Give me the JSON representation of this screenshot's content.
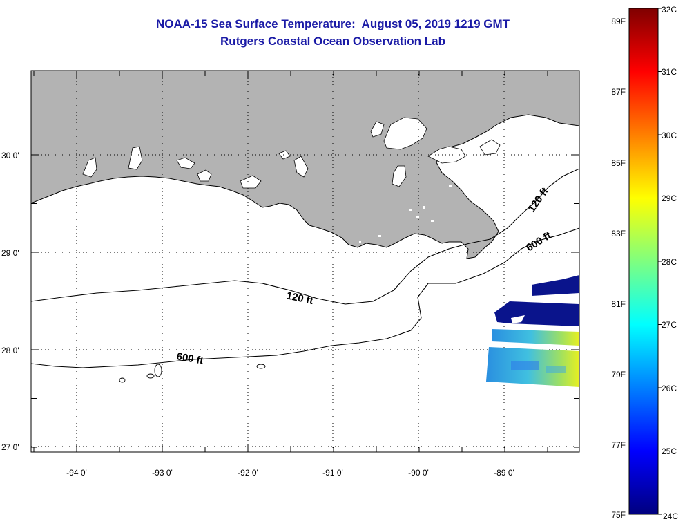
{
  "titles": {
    "line1": "NOAA-15 Sea Surface Temperature:  August 05, 2019 1219 GMT",
    "line2": "Rutgers Coastal Ocean Observation Lab"
  },
  "map": {
    "lon_labels": [
      "-94 0'",
      "-93 0'",
      "-92 0'",
      "-91 0'",
      "-90 0'",
      "-89 0'"
    ],
    "lat_labels": [
      "30 0'",
      "29 0'",
      "28 0'",
      "27 0'"
    ],
    "isobath_labels": [
      {
        "text": "120 ft",
        "which": "inner-west"
      },
      {
        "text": "120 ft",
        "which": "inner-east"
      },
      {
        "text": "600 ft",
        "which": "outer-west"
      },
      {
        "text": "600 ft",
        "which": "outer-east"
      }
    ],
    "grid": "dotted",
    "colors": {
      "land": "#b3b3b3",
      "water": "#ffffff",
      "isobath": "#000000"
    }
  },
  "colorbar": {
    "celsius_labels": [
      "32C",
      "31C",
      "30C",
      "29C",
      "28C",
      "27C",
      "26C",
      "25C",
      "24C"
    ],
    "fahrenheit_labels": [
      "89F",
      "87F",
      "85F",
      "83F",
      "81F",
      "79F",
      "77F",
      "75F"
    ],
    "celsius_range": [
      24,
      32
    ],
    "stops": [
      "#00007f",
      "#0000ff",
      "#007fff",
      "#00ffff",
      "#7fff7f",
      "#ffff00",
      "#ff7f00",
      "#ff0000",
      "#7f0000"
    ]
  }
}
